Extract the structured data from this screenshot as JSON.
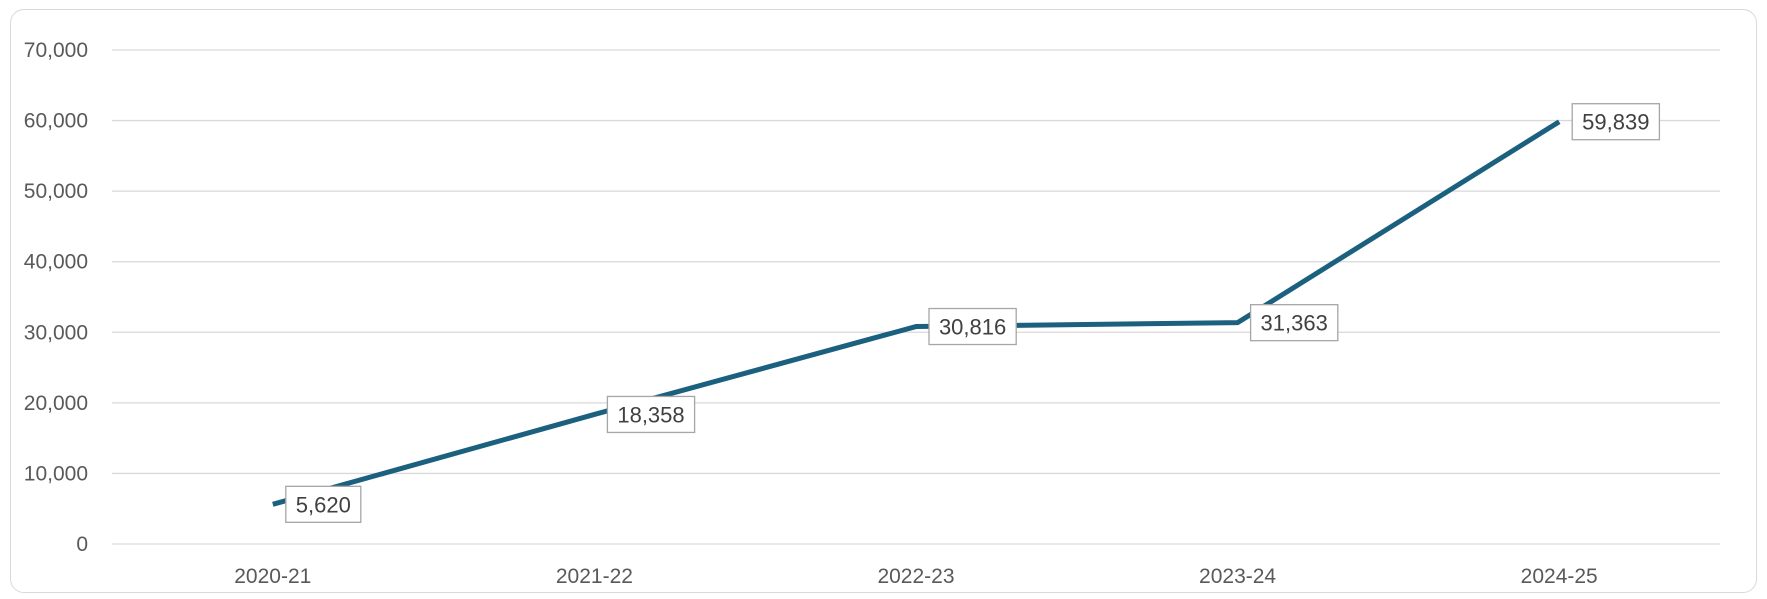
{
  "chart_data": {
    "type": "line",
    "categories": [
      "2020-21",
      "2021-22",
      "2022-23",
      "2023-24",
      "2024-25"
    ],
    "series": [
      {
        "values": [
          5620,
          18358,
          30816,
          31363,
          59839
        ],
        "data_labels": [
          "5,620",
          "18,358",
          "30,816",
          "31,363",
          "59,839"
        ],
        "color": "#1b607f"
      }
    ],
    "ylim": [
      0,
      70000
    ],
    "yticks": [
      0,
      10000,
      20000,
      30000,
      40000,
      50000,
      60000,
      70000
    ],
    "ytick_labels": [
      "0",
      "10,000",
      "20,000",
      "30,000",
      "40,000",
      "50,000",
      "60,000",
      "70,000"
    ],
    "grid": true,
    "gridline_color": "#d9d9d9",
    "label_border_color": "#a6a6a6"
  }
}
